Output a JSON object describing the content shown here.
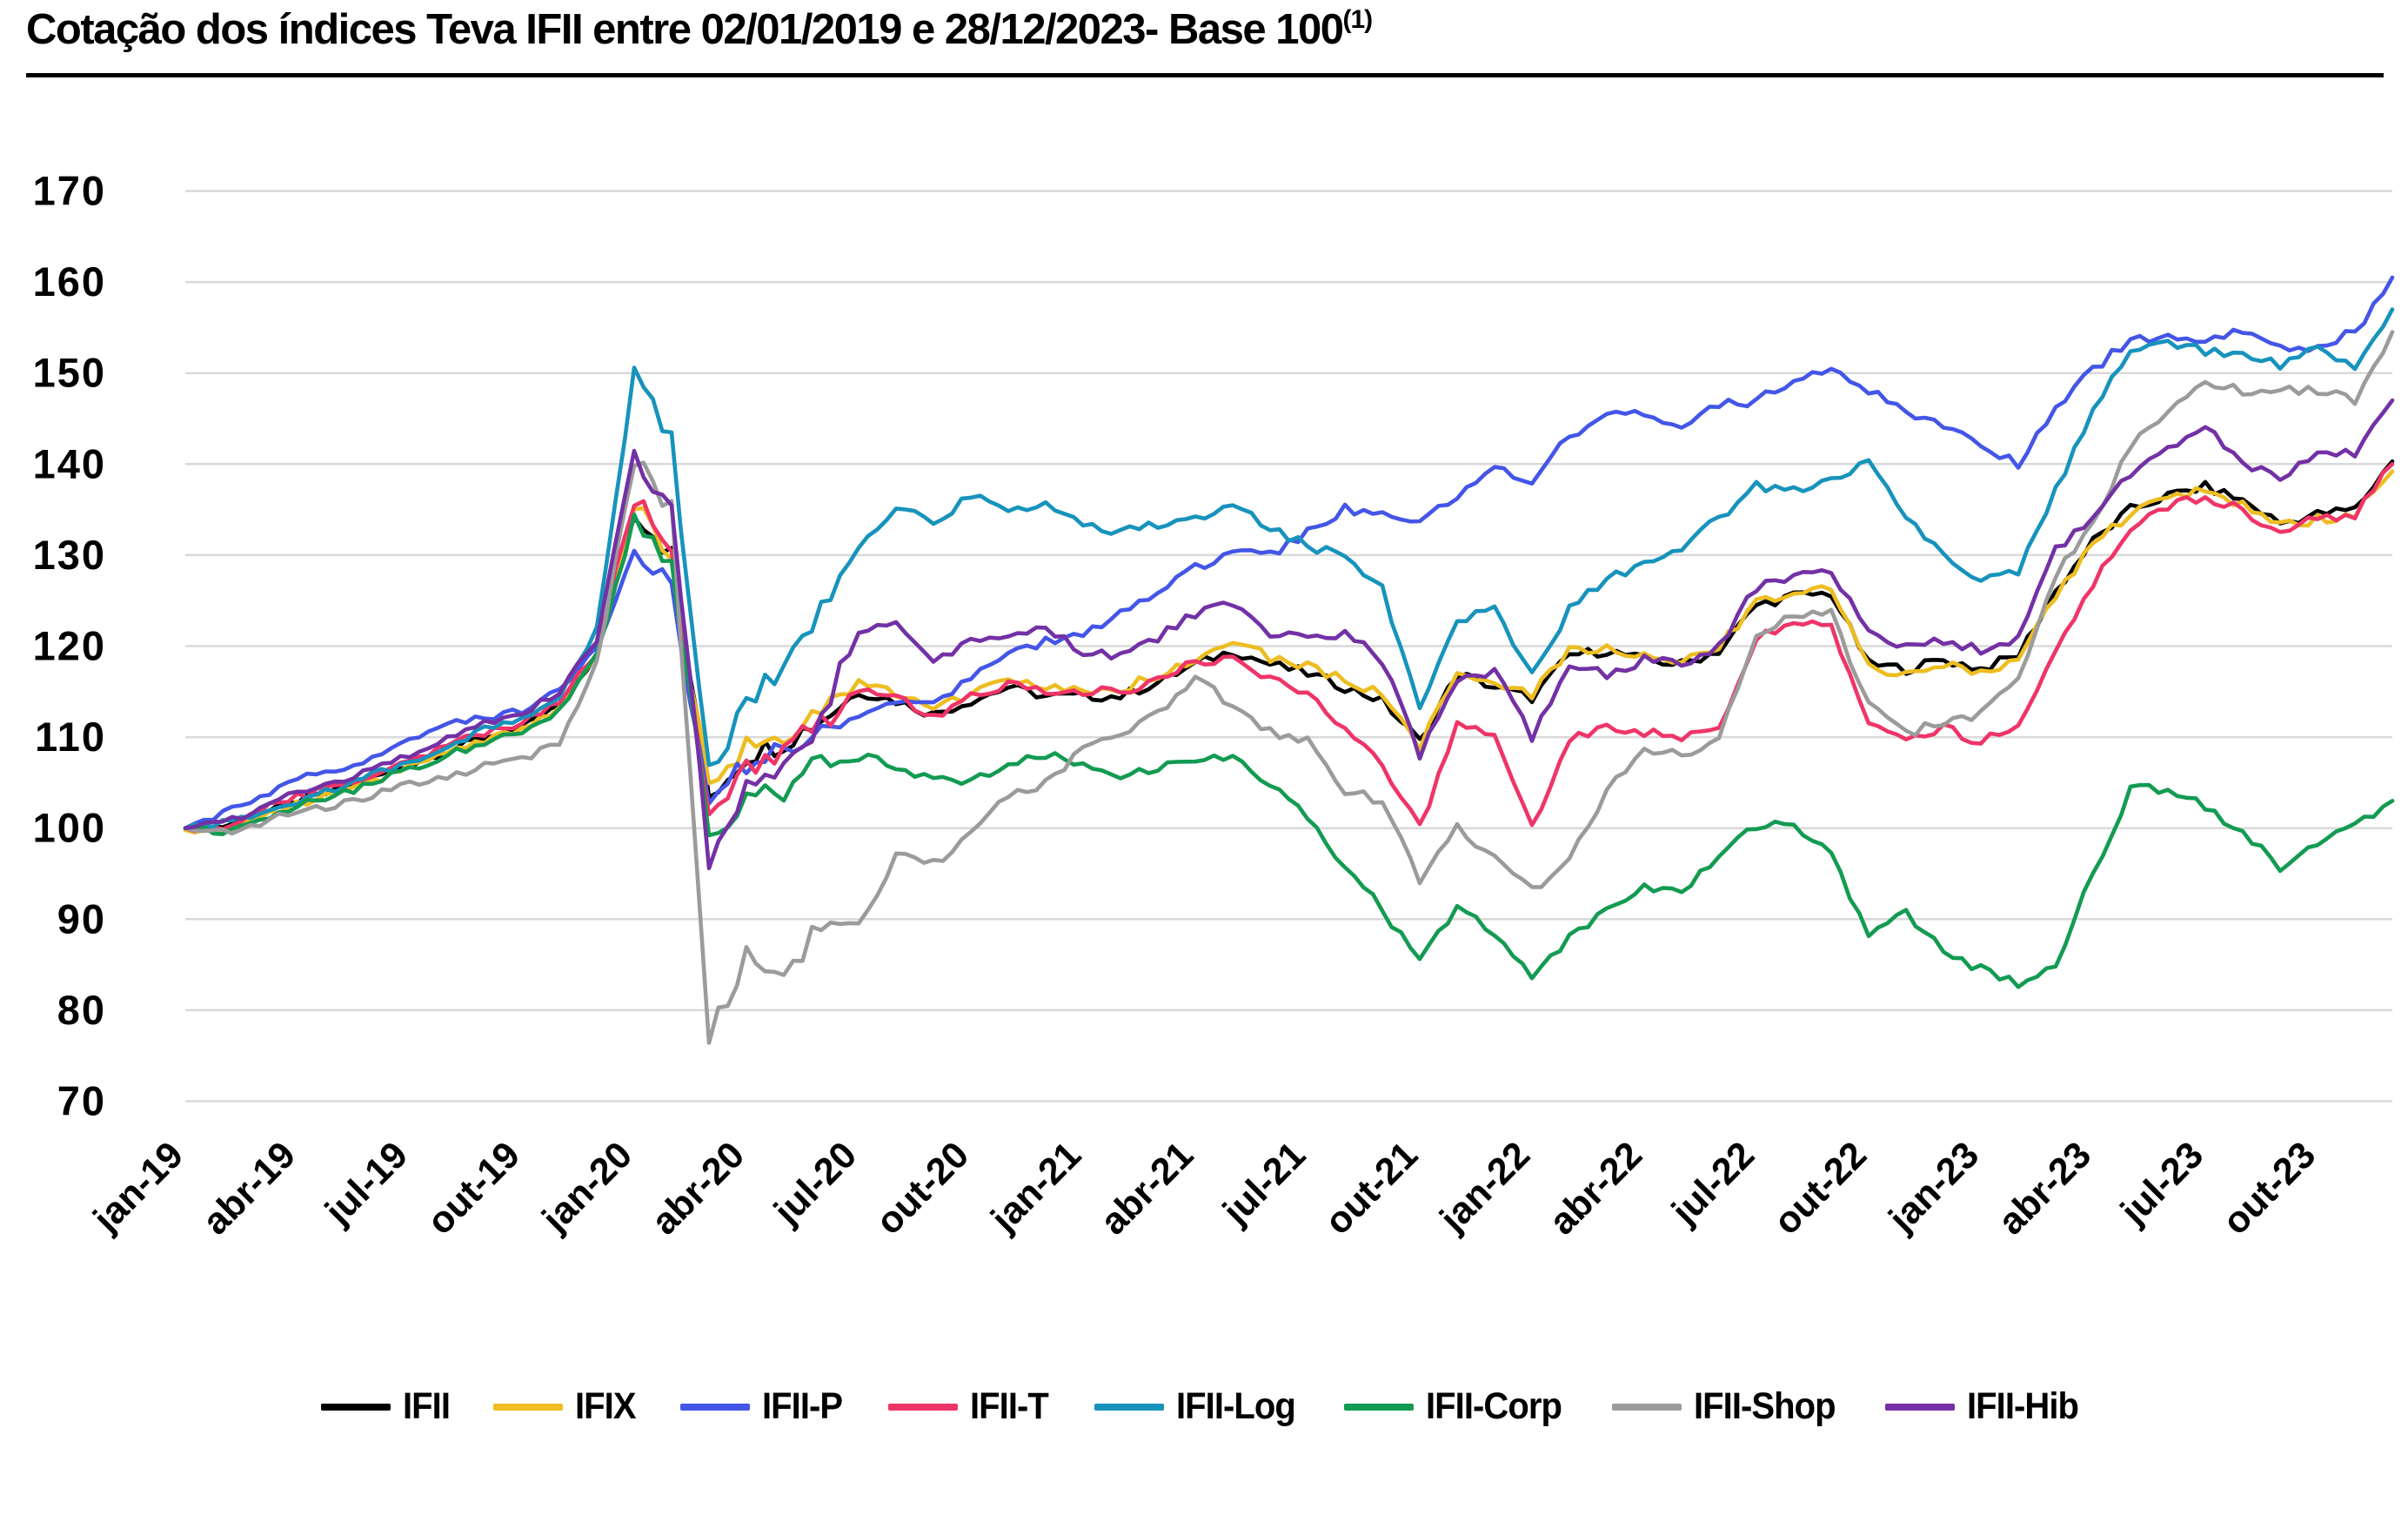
{
  "title": {
    "text": "Cotação dos índices Teva IFII entre 02/01/2019 e 28/12/2023- Base 100",
    "superscript": "(1)"
  },
  "chart_data": {
    "type": "line",
    "title": "Cotação dos índices Teva IFII entre 02/01/2019 e 28/12/2023- Base 100 (1)",
    "xlabel": "",
    "ylabel": "",
    "x_unit": "monthly, jan-2019 to dez-2023 (60 points per series)",
    "ylim": [
      70,
      170
    ],
    "yticks": [
      70,
      80,
      90,
      100,
      110,
      120,
      130,
      140,
      150,
      160,
      170
    ],
    "grid": "horizontal-only",
    "grid_color": "#d9d9d9",
    "axis_text_color": "#000000",
    "legend_position": "bottom",
    "x_tick_labels": [
      "jan-19",
      "abr-19",
      "jul-19",
      "out-19",
      "jan-20",
      "abr-20",
      "jul-20",
      "out-20",
      "jan-21",
      "abr-21",
      "jul-21",
      "out-21",
      "jan-22",
      "abr-22",
      "jul-22",
      "out-22",
      "jan-23",
      "abr-23",
      "jul-23",
      "out-23"
    ],
    "x_tick_month_indices": [
      0,
      3,
      6,
      9,
      12,
      15,
      18,
      21,
      24,
      27,
      30,
      33,
      36,
      39,
      42,
      45,
      48,
      51,
      54,
      57
    ],
    "series": [
      {
        "name": "IFII",
        "color": "#000000",
        "values": [
          100,
          100.2,
          101.5,
          103,
          104,
          105.5,
          107,
          108.5,
          110,
          111,
          113.5,
          119,
          135,
          130,
          103.5,
          108,
          109.5,
          112,
          115,
          114,
          112.5,
          114,
          115.5,
          114.5,
          114.5,
          114.5,
          116,
          118,
          119.5,
          118,
          117,
          115.5,
          114,
          109.5,
          117,
          115.5,
          114.3,
          119,
          119.5,
          118.5,
          118,
          119.5,
          124.5,
          125.5,
          125.8,
          118,
          117.5,
          118.5,
          117.5,
          119,
          126,
          131.5,
          135,
          136.5,
          137.5,
          136,
          133.5,
          134.5,
          135,
          140.3
        ]
      },
      {
        "name": "IFIX",
        "color": "#EDBD22",
        "values": [
          99.8,
          100,
          101.2,
          102.7,
          103.7,
          105.2,
          106.7,
          108.2,
          109.7,
          110.7,
          113.2,
          118.7,
          135.5,
          130.5,
          103.8,
          108.8,
          110.3,
          112.8,
          115.8,
          114.8,
          113.3,
          114.8,
          116.3,
          115.3,
          115.3,
          115.3,
          116.8,
          118.8,
          120.3,
          118.8,
          117.8,
          116.3,
          114.8,
          109,
          117.5,
          116,
          114.8,
          119.4,
          119.9,
          118.9,
          118.4,
          119.9,
          124.9,
          125.9,
          126.2,
          117.6,
          117.1,
          118.1,
          117.1,
          118.6,
          125.6,
          131.1,
          134.6,
          136.1,
          137.1,
          135.6,
          133.1,
          134,
          134.5,
          139.2
        ]
      },
      {
        "name": "IFII-P",
        "color": "#4456E7",
        "values": [
          100,
          101.5,
          103.5,
          105.5,
          106.5,
          107.5,
          109.5,
          111.5,
          112,
          113,
          115.5,
          119.5,
          131,
          126.5,
          102.5,
          107,
          108.5,
          110.5,
          112.5,
          113.5,
          114,
          116.5,
          119.5,
          120.5,
          121.5,
          123.5,
          126,
          128.5,
          130.5,
          130,
          132.5,
          135,
          135,
          133.5,
          136.5,
          140,
          138,
          143,
          146,
          145.5,
          144.5,
          146.5,
          147,
          149,
          150.3,
          148,
          146,
          144,
          142,
          140,
          146.3,
          150.5,
          153.5,
          154,
          153.5,
          154.5,
          152.5,
          153,
          154.5,
          160.5
        ]
      },
      {
        "name": "IFII-T",
        "color": "#EF3568",
        "values": [
          100,
          100,
          102,
          103.5,
          104.5,
          106,
          107.5,
          109,
          110.5,
          111.5,
          114,
          119.3,
          136.5,
          131.5,
          100.5,
          106.5,
          108.5,
          111.5,
          115.3,
          114.3,
          112.3,
          114.3,
          116,
          115,
          115,
          115,
          116.3,
          118.3,
          118.5,
          116.5,
          114.5,
          111,
          107,
          100,
          111.5,
          110.5,
          100,
          110,
          111,
          110.5,
          110,
          111,
          121,
          122.5,
          122.5,
          111.5,
          110,
          111,
          109.5,
          111,
          119,
          127,
          133,
          135.5,
          136.5,
          135,
          132.5,
          134,
          134.5,
          140
        ]
      },
      {
        "name": "IFII-Log",
        "color": "#1793BC",
        "values": [
          100,
          100.5,
          101.5,
          103,
          104.3,
          105.8,
          107.3,
          109,
          110.8,
          112,
          114.5,
          122,
          150,
          143,
          106,
          114,
          118,
          124,
          130.5,
          135.5,
          133.5,
          136.5,
          134.5,
          136,
          133,
          132.5,
          133.5,
          134,
          136,
          133,
          131,
          130,
          126.5,
          113,
          123,
          124,
          117,
          124,
          127.5,
          129,
          131,
          134,
          137.5,
          137,
          138.5,
          140,
          134,
          130,
          127.5,
          128,
          137,
          146,
          152.5,
          153,
          152.5,
          152,
          151,
          152.5,
          150.5,
          157
        ]
      },
      {
        "name": "IFII-Corp",
        "color": "#139B52",
        "values": [
          100,
          99.5,
          101,
          102.5,
          103.5,
          105,
          106.5,
          108,
          109.5,
          110.5,
          113,
          119,
          134,
          129,
          99,
          103,
          104,
          107.5,
          108,
          107,
          105,
          105.5,
          107,
          108,
          107,
          106,
          106.5,
          107.5,
          108,
          105,
          101,
          96,
          91,
          85.5,
          91.5,
          88,
          84,
          88,
          91,
          93.5,
          93,
          97,
          100.3,
          100.5,
          97,
          88.5,
          90.5,
          86.5,
          84.5,
          82.8,
          85,
          95,
          104.3,
          104.3,
          102.5,
          99.5,
          95.8,
          98.5,
          100,
          103
        ]
      },
      {
        "name": "IFII-Shop",
        "color": "#9B9B9B",
        "values": [
          100,
          99.5,
          100.5,
          102,
          102.5,
          103.5,
          105,
          105.5,
          107,
          107.5,
          109.5,
          118,
          141,
          135,
          77,
          86,
          83,
          90,
          89,
          97,
          96,
          99.5,
          103.5,
          105,
          108.5,
          110,
          112.5,
          116.5,
          113.5,
          110.5,
          109.5,
          104,
          103,
          94,
          100,
          96.5,
          93,
          97,
          104,
          108.5,
          108,
          109.5,
          121.5,
          123.5,
          124,
          113.5,
          110.5,
          111.5,
          112.5,
          116,
          128,
          133.5,
          142,
          146,
          149,
          148,
          148.5,
          148,
          147,
          154.5
        ]
      },
      {
        "name": "IFII-Hib",
        "color": "#7331A5",
        "values": [
          100,
          100.5,
          102,
          104,
          105,
          106.5,
          108,
          110,
          111.5,
          112.5,
          115,
          121,
          141,
          135,
          96,
          104,
          106.5,
          112,
          122,
          122.5,
          118.5,
          120.5,
          121.5,
          122,
          119.5,
          119,
          121,
          123.5,
          124.5,
          121.5,
          121,
          121.5,
          118.5,
          108,
          116,
          117.5,
          110,
          117.5,
          117,
          118.5,
          118,
          120,
          126.5,
          127.5,
          128,
          121.5,
          120,
          120.5,
          119.5,
          121,
          130.5,
          134,
          139,
          142,
          144,
          140,
          138.5,
          141.5,
          141,
          147
        ]
      }
    ]
  }
}
